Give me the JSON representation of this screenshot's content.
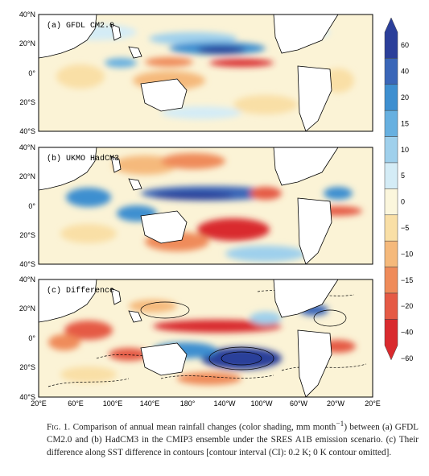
{
  "panels": [
    {
      "label": "(a)  GFDL  CM2.0",
      "lat_ticks": [
        "40°N",
        "20°N",
        "0°",
        "20°S",
        "40°S"
      ]
    },
    {
      "label": "(b)  UKMO  HadCM3",
      "lat_ticks": [
        "40°N",
        "20°N",
        "0°",
        "20°S",
        "40°S"
      ]
    },
    {
      "label": "(c)  Difference",
      "lat_ticks": [
        "40°N",
        "20°N",
        "0°",
        "20°S",
        "40°S"
      ]
    }
  ],
  "lon_ticks": [
    "20°E",
    "60°E",
    "100°E",
    "140°E",
    "180°",
    "140°W",
    "100°W",
    "60°W",
    "20°W",
    "20°E"
  ],
  "colorbar": {
    "labels": [
      "60",
      "40",
      "20",
      "15",
      "10",
      "5",
      "0",
      "−5",
      "−10",
      "−15",
      "−20",
      "−40",
      "−60"
    ],
    "colors": [
      "#2b3f9a",
      "#3a66b8",
      "#3e8fd0",
      "#67b0e0",
      "#9fd0ec",
      "#d4ecf6",
      "#fbf6dc",
      "#f9dfa6",
      "#f5b97b",
      "#ef8b5a",
      "#e55a45",
      "#d92a2e"
    ]
  },
  "caption": {
    "fig_num": "Fig. 1.",
    "text": "Comparison of annual mean rainfall changes (color shading, mm month",
    "sup": "−1",
    "text2": ") between (a) GFDL CM2.0 and (b) HadCM3 in the CMIP3 ensemble under the SRES A1B emission scenario. (c) Their difference along SST difference in contours [contour interval (CI): 0.2 K; 0 K contour omitted]."
  }
}
